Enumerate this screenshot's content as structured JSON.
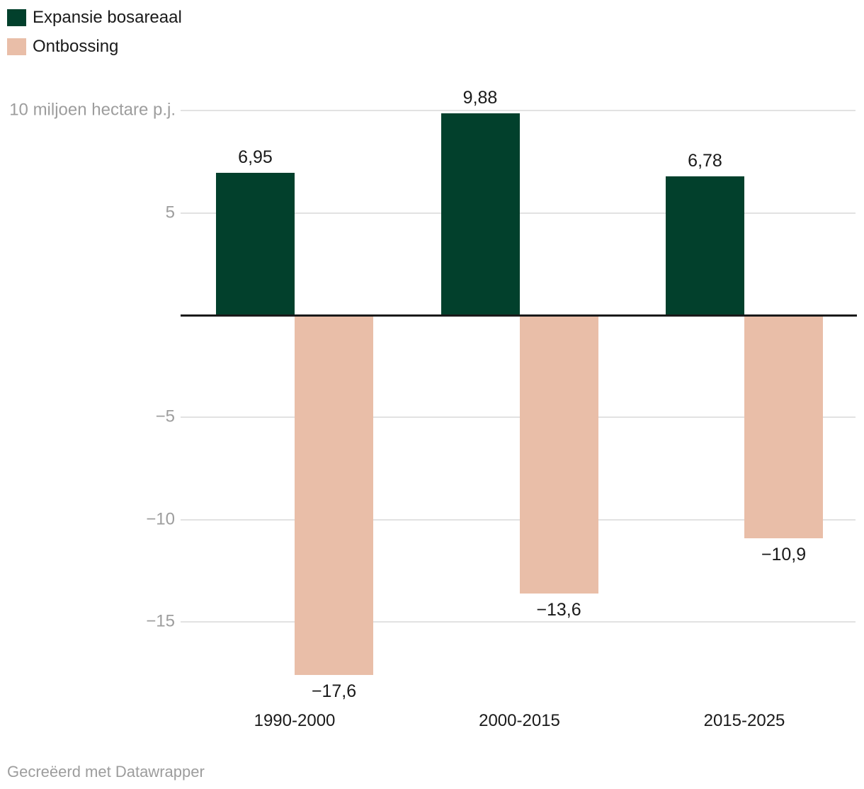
{
  "legend": {
    "items": [
      {
        "label": "Expansie bosareaal",
        "color": "#02402c"
      },
      {
        "label": "Ontbossing",
        "color": "#e9bea8"
      }
    ]
  },
  "chart_data": {
    "type": "bar",
    "categories": [
      "1990-2000",
      "2000-2015",
      "2015-2025"
    ],
    "series": [
      {
        "name": "Expansie bosareaal",
        "color": "#02402c",
        "values": [
          6.95,
          9.88,
          6.78
        ],
        "value_labels": [
          "6,95",
          "9,88",
          "6,78"
        ]
      },
      {
        "name": "Ontbossing",
        "color": "#e9bea8",
        "values": [
          -17.6,
          -13.6,
          -10.9
        ],
        "value_labels": [
          "−17,6",
          "−13,6",
          "−10,9"
        ]
      }
    ],
    "ylabel": "10 miljoen hectare p.j.",
    "yticks": [
      {
        "value": 10,
        "label": "10 miljoen hectare p.j."
      },
      {
        "value": 5,
        "label": "5"
      },
      {
        "value": 0,
        "label": ""
      },
      {
        "value": -5,
        "label": "−5"
      },
      {
        "value": -10,
        "label": "−10"
      },
      {
        "value": -15,
        "label": "−15"
      }
    ],
    "ylim": [
      -18.6,
      10.4
    ],
    "grid": true,
    "zero_line": true,
    "legend_position": "top-left"
  },
  "footer": {
    "credit": "Gecreëerd met Datawrapper"
  },
  "colors": {
    "grid": "#e2e2e2",
    "zero_line": "#1a1a1a",
    "text": "#1a1a1a",
    "muted_text": "#9d9d9d",
    "background": "#ffffff"
  }
}
